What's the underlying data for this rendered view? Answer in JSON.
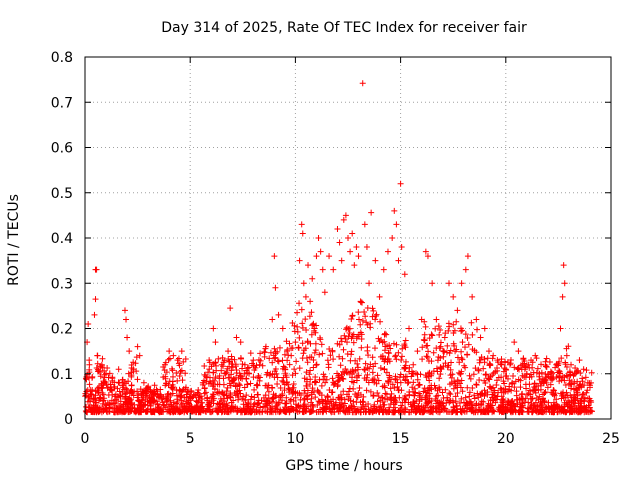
{
  "chart_data": {
    "type": "scatter",
    "title": "Day 314 of 2025, Rate Of TEC Index for receiver fair",
    "xlabel": "GPS time / hours",
    "ylabel": "ROTI / TECUs",
    "xlim": [
      0,
      25
    ],
    "ylim": [
      0,
      0.8
    ],
    "xticks": [
      0,
      5,
      10,
      15,
      20,
      25
    ],
    "yticks": [
      0,
      0.1,
      0.2,
      0.3,
      0.4,
      0.5,
      0.6,
      0.7,
      0.8
    ],
    "xtick_labels": [
      "0",
      "5",
      "10",
      "15",
      "20",
      "25"
    ],
    "ytick_labels": [
      "0",
      "0.1",
      "0.2",
      "0.3",
      "0.4",
      "0.5",
      "0.6",
      "0.7",
      "0.8"
    ],
    "grid": true,
    "marker": "+",
    "color": "#ff0000",
    "series": [
      {
        "points": [
          [
            0.1,
            0.17
          ],
          [
            0.15,
            0.21
          ],
          [
            0.2,
            0.13
          ],
          [
            0.5,
            0.33
          ],
          [
            0.55,
            0.33
          ],
          [
            0.5,
            0.265
          ],
          [
            0.45,
            0.23
          ],
          [
            0.6,
            0.14
          ],
          [
            0.8,
            0.12
          ],
          [
            1.0,
            0.1
          ],
          [
            1.3,
            0.09
          ],
          [
            1.6,
            0.11
          ],
          [
            1.9,
            0.24
          ],
          [
            1.95,
            0.22
          ],
          [
            2.0,
            0.18
          ],
          [
            2.1,
            0.15
          ],
          [
            2.3,
            0.11
          ],
          [
            2.5,
            0.16
          ],
          [
            2.6,
            0.14
          ],
          [
            2.8,
            0.08
          ],
          [
            3.0,
            0.07
          ],
          [
            3.3,
            0.06
          ],
          [
            3.5,
            0.05
          ],
          [
            3.8,
            0.12
          ],
          [
            4.0,
            0.15
          ],
          [
            4.2,
            0.14
          ],
          [
            4.4,
            0.13
          ],
          [
            4.6,
            0.15
          ],
          [
            4.8,
            0.07
          ],
          [
            5.0,
            0.05
          ],
          [
            5.3,
            0.04
          ],
          [
            5.6,
            0.08
          ],
          [
            5.9,
            0.13
          ],
          [
            6.1,
            0.2
          ],
          [
            6.2,
            0.17
          ],
          [
            6.5,
            0.12
          ],
          [
            6.8,
            0.15
          ],
          [
            6.9,
            0.245
          ],
          [
            7.2,
            0.18
          ],
          [
            7.4,
            0.17
          ],
          [
            7.6,
            0.12
          ],
          [
            7.8,
            0.1
          ],
          [
            8.0,
            0.13
          ],
          [
            8.3,
            0.12
          ],
          [
            8.6,
            0.16
          ],
          [
            8.9,
            0.22
          ],
          [
            9.0,
            0.36
          ],
          [
            9.05,
            0.29
          ],
          [
            9.2,
            0.23
          ],
          [
            9.4,
            0.2
          ],
          [
            9.6,
            0.15
          ],
          [
            9.8,
            0.14
          ],
          [
            10.0,
            0.17
          ],
          [
            10.2,
            0.35
          ],
          [
            10.3,
            0.43
          ],
          [
            10.35,
            0.41
          ],
          [
            10.4,
            0.3
          ],
          [
            10.5,
            0.27
          ],
          [
            10.6,
            0.34
          ],
          [
            10.7,
            0.26
          ],
          [
            10.8,
            0.31
          ],
          [
            10.9,
            0.2
          ],
          [
            11.0,
            0.36
          ],
          [
            11.1,
            0.4
          ],
          [
            11.2,
            0.37
          ],
          [
            11.3,
            0.33
          ],
          [
            11.4,
            0.28
          ],
          [
            11.6,
            0.36
          ],
          [
            11.8,
            0.33
          ],
          [
            12.0,
            0.42
          ],
          [
            12.1,
            0.39
          ],
          [
            12.2,
            0.35
          ],
          [
            12.3,
            0.44
          ],
          [
            12.4,
            0.45
          ],
          [
            12.5,
            0.4
          ],
          [
            12.6,
            0.37
          ],
          [
            12.7,
            0.41
          ],
          [
            12.8,
            0.34
          ],
          [
            12.9,
            0.38
          ],
          [
            13.0,
            0.36
          ],
          [
            13.1,
            0.26
          ],
          [
            13.2,
            0.742
          ],
          [
            13.3,
            0.43
          ],
          [
            13.4,
            0.38
          ],
          [
            13.5,
            0.3
          ],
          [
            13.6,
            0.456
          ],
          [
            13.8,
            0.35
          ],
          [
            14.0,
            0.27
          ],
          [
            14.2,
            0.33
          ],
          [
            14.4,
            0.37
          ],
          [
            14.6,
            0.4
          ],
          [
            14.7,
            0.46
          ],
          [
            14.8,
            0.43
          ],
          [
            14.9,
            0.35
          ],
          [
            15.0,
            0.52
          ],
          [
            15.05,
            0.38
          ],
          [
            15.2,
            0.32
          ],
          [
            15.4,
            0.2
          ],
          [
            15.6,
            0.12
          ],
          [
            15.8,
            0.15
          ],
          [
            16.0,
            0.22
          ],
          [
            16.2,
            0.37
          ],
          [
            16.3,
            0.36
          ],
          [
            16.5,
            0.3
          ],
          [
            16.7,
            0.22
          ],
          [
            16.9,
            0.16
          ],
          [
            17.1,
            0.18
          ],
          [
            17.3,
            0.3
          ],
          [
            17.5,
            0.27
          ],
          [
            17.7,
            0.24
          ],
          [
            17.9,
            0.3
          ],
          [
            18.1,
            0.33
          ],
          [
            18.2,
            0.36
          ],
          [
            18.4,
            0.27
          ],
          [
            18.6,
            0.22
          ],
          [
            18.8,
            0.18
          ],
          [
            19.0,
            0.2
          ],
          [
            19.2,
            0.15
          ],
          [
            19.4,
            0.14
          ],
          [
            19.6,
            0.13
          ],
          [
            19.8,
            0.12
          ],
          [
            20.0,
            0.11
          ],
          [
            20.2,
            0.12
          ],
          [
            20.4,
            0.17
          ],
          [
            20.6,
            0.15
          ],
          [
            20.8,
            0.12
          ],
          [
            21.0,
            0.1
          ],
          [
            21.2,
            0.13
          ],
          [
            21.4,
            0.14
          ],
          [
            21.6,
            0.1
          ],
          [
            21.8,
            0.08
          ],
          [
            22.0,
            0.07
          ],
          [
            22.2,
            0.1
          ],
          [
            22.4,
            0.12
          ],
          [
            22.6,
            0.2
          ],
          [
            22.7,
            0.27
          ],
          [
            22.75,
            0.34
          ],
          [
            22.8,
            0.3
          ],
          [
            22.9,
            0.14
          ],
          [
            23.1,
            0.12
          ],
          [
            23.3,
            0.1
          ],
          [
            23.5,
            0.13
          ],
          [
            23.7,
            0.11
          ],
          [
            23.9,
            0.08
          ],
          [
            24.0,
            0.07
          ]
        ]
      }
    ]
  }
}
